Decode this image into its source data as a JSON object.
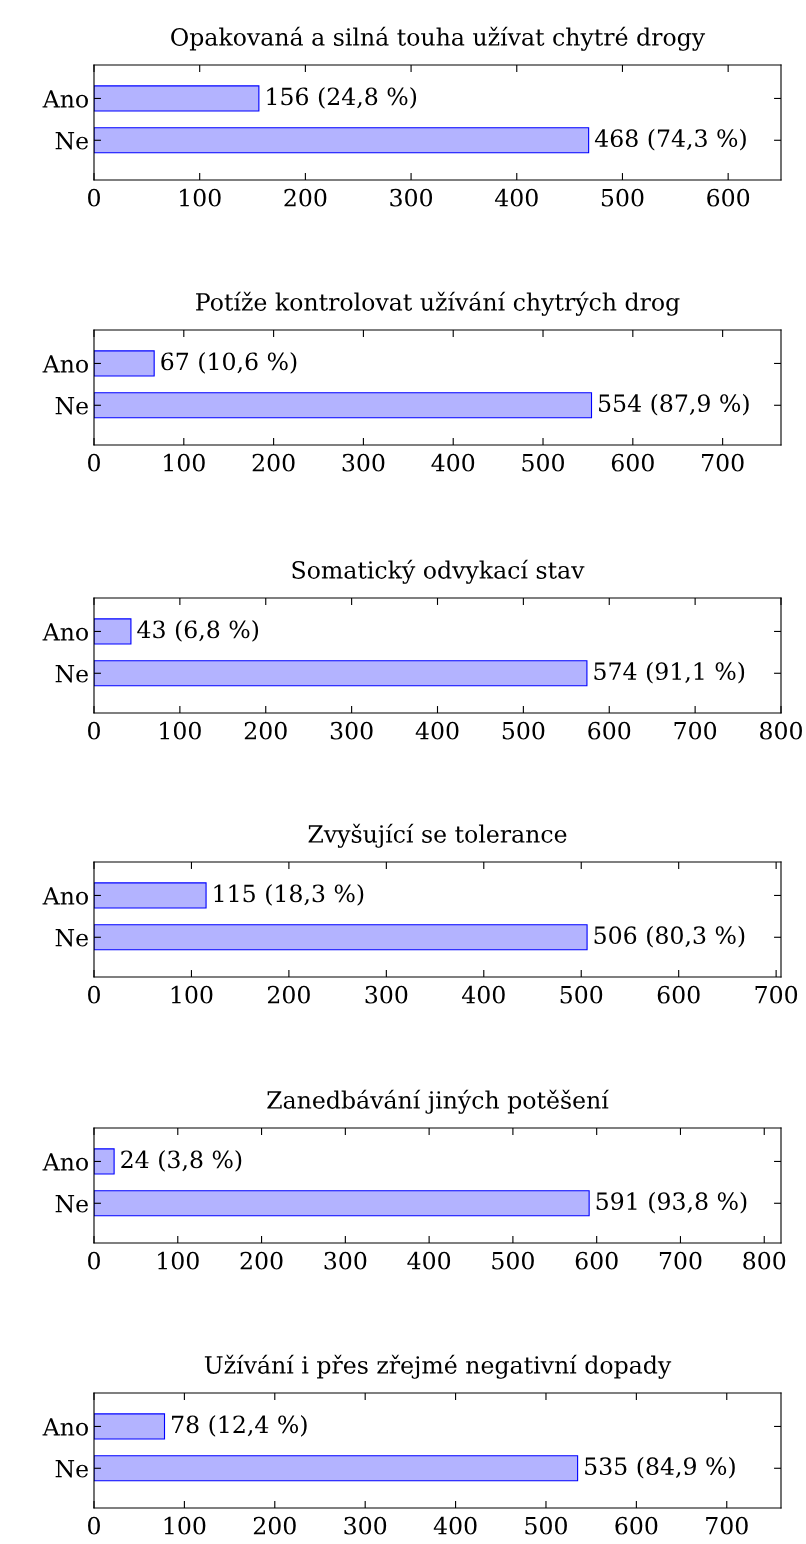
{
  "chart_data": [
    {
      "type": "bar",
      "orientation": "horizontal",
      "title": "Opakovaná a silná touha užívat chytré drogy",
      "categories": [
        "Ano",
        "Ne"
      ],
      "values": [
        156,
        468
      ],
      "value_labels": [
        "156 (24,8 %)",
        "468 (74,3 %)"
      ],
      "color": "#b3b3ff",
      "xlim": [
        0,
        650
      ],
      "xticks": [
        0,
        100,
        200,
        300,
        400,
        500,
        600
      ],
      "grid": false,
      "legend": false
    },
    {
      "type": "bar",
      "orientation": "horizontal",
      "title": "Potíže kontrolovat užívání chytrých drog",
      "categories": [
        "Ano",
        "Ne"
      ],
      "values": [
        67,
        554
      ],
      "value_labels": [
        "67 (10,6 %)",
        "554 (87,9 %)"
      ],
      "color": "#b3b3ff",
      "xlim": [
        0,
        765
      ],
      "xticks": [
        0,
        100,
        200,
        300,
        400,
        500,
        600,
        700
      ],
      "grid": false,
      "legend": false
    },
    {
      "type": "bar",
      "orientation": "horizontal",
      "title": "Somatický odvykací stav",
      "categories": [
        "Ano",
        "Ne"
      ],
      "values": [
        43,
        574
      ],
      "value_labels": [
        "43 (6,8 %)",
        "574 (91,1 %)"
      ],
      "color": "#b3b3ff",
      "xlim": [
        0,
        800
      ],
      "xticks": [
        0,
        100,
        200,
        300,
        400,
        500,
        600,
        700,
        800
      ],
      "grid": false,
      "legend": false
    },
    {
      "type": "bar",
      "orientation": "horizontal",
      "title": "Zvyšující se tolerance",
      "categories": [
        "Ano",
        "Ne"
      ],
      "values": [
        115,
        506
      ],
      "value_labels": [
        "115 (18,3 %)",
        "506 (80,3 %)"
      ],
      "color": "#b3b3ff",
      "xlim": [
        0,
        705
      ],
      "xticks": [
        0,
        100,
        200,
        300,
        400,
        500,
        600,
        700
      ],
      "grid": false,
      "legend": false
    },
    {
      "type": "bar",
      "orientation": "horizontal",
      "title": "Zanedbávání jiných potěšení",
      "categories": [
        "Ano",
        "Ne"
      ],
      "values": [
        24,
        591
      ],
      "value_labels": [
        "24 (3,8 %)",
        "591 (93,8 %)"
      ],
      "color": "#b3b3ff",
      "xlim": [
        0,
        820
      ],
      "xticks": [
        0,
        100,
        200,
        300,
        400,
        500,
        600,
        700,
        800
      ],
      "grid": false,
      "legend": false
    },
    {
      "type": "bar",
      "orientation": "horizontal",
      "title": "Užívání i přes zřejmé negativní dopady",
      "categories": [
        "Ano",
        "Ne"
      ],
      "values": [
        78,
        535
      ],
      "value_labels": [
        "78 (12,4 %)",
        "535 (84,9 %)"
      ],
      "color": "#b3b3ff",
      "xlim": [
        0,
        760
      ],
      "xticks": [
        0,
        100,
        200,
        300,
        400,
        500,
        600,
        700
      ],
      "grid": false,
      "legend": false
    }
  ]
}
